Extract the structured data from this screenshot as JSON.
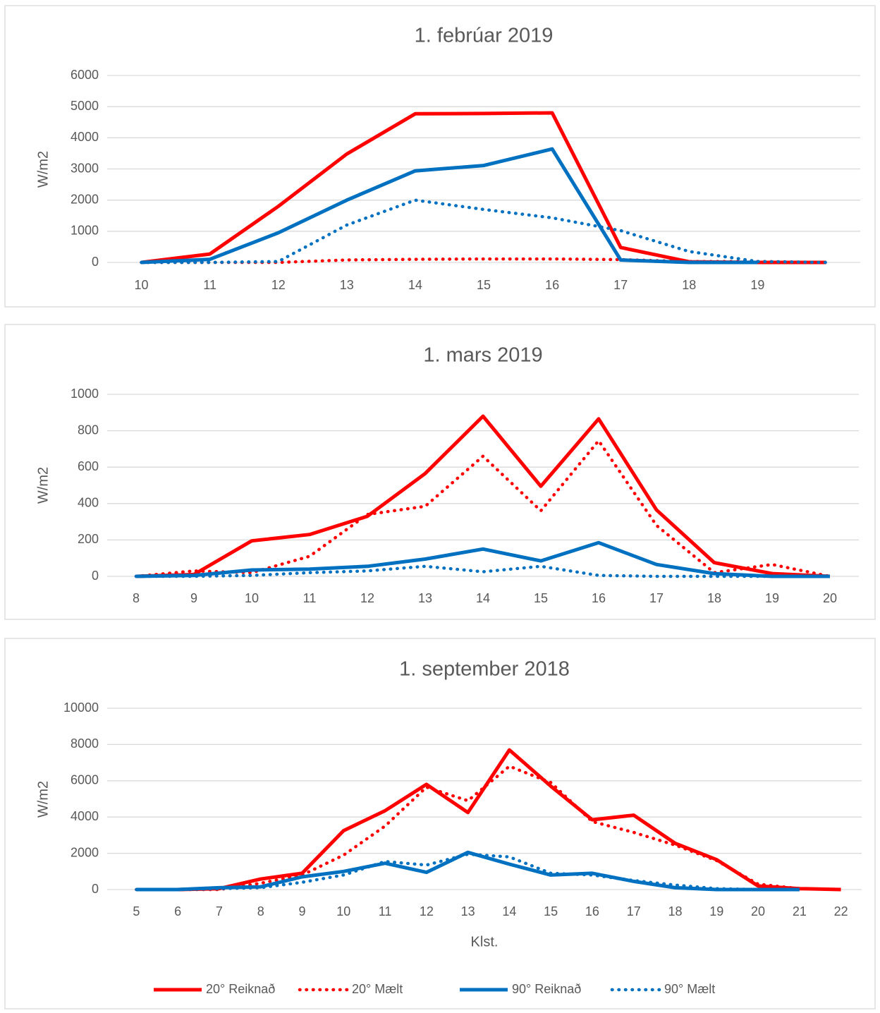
{
  "chart_data": [
    {
      "type": "line",
      "title": "1. febrúar 2019",
      "ylabel": "W/m2",
      "categories": [
        "10",
        "11",
        "12",
        "13",
        "14",
        "15",
        "16",
        "17",
        "18",
        "19",
        null
      ],
      "ylim": [
        0,
        6000
      ],
      "yticks": [
        0,
        1000,
        2000,
        3000,
        4000,
        5000,
        6000
      ],
      "grid": true,
      "series": [
        {
          "color": "#ff0000",
          "line_style": "solid",
          "values": [
            0,
            270,
            1800,
            3480,
            4770,
            4780,
            4800,
            480,
            20,
            0,
            0
          ]
        },
        {
          "color": "#ff0000",
          "line_style": "dotted",
          "values": [
            0,
            0,
            0,
            80,
            100,
            110,
            110,
            90,
            30,
            30,
            0
          ]
        },
        {
          "color": "#0070c0",
          "line_style": "solid",
          "values": [
            0,
            100,
            950,
            2000,
            2940,
            3110,
            3640,
            80,
            0,
            0,
            null
          ]
        },
        {
          "color": "#0070c0",
          "line_style": "dotted",
          "values": [
            0,
            0,
            30,
            1200,
            2000,
            1700,
            1430,
            1020,
            350,
            30,
            0
          ]
        }
      ]
    },
    {
      "type": "line",
      "title": "1. mars  2019",
      "ylabel": "W/m2",
      "categories": [
        "8",
        "9",
        "10",
        "11",
        "12",
        "13",
        "14",
        "15",
        "16",
        "17",
        "18",
        "19",
        "20"
      ],
      "ylim": [
        0,
        1000
      ],
      "yticks": [
        0,
        200,
        400,
        600,
        800,
        1000
      ],
      "grid": true,
      "series": [
        {
          "color": "#ff0000",
          "line_style": "solid",
          "values": [
            0,
            10,
            195,
            230,
            330,
            565,
            880,
            495,
            865,
            365,
            75,
            15,
            0
          ]
        },
        {
          "color": "#ff0000",
          "line_style": "dotted",
          "values": [
            0,
            30,
            20,
            110,
            340,
            385,
            660,
            360,
            745,
            280,
            20,
            65,
            0
          ]
        },
        {
          "color": "#0070c0",
          "line_style": "solid",
          "values": [
            0,
            5,
            35,
            40,
            55,
            95,
            150,
            85,
            185,
            65,
            15,
            0,
            0
          ]
        },
        {
          "color": "#0070c0",
          "line_style": "dotted",
          "values": [
            0,
            0,
            5,
            20,
            30,
            55,
            25,
            55,
            5,
            0,
            0,
            0,
            0
          ]
        }
      ]
    },
    {
      "type": "line",
      "title": "1. september 2018",
      "ylabel": "W/m2",
      "xlabel": "Klst.",
      "categories": [
        "5",
        "6",
        "7",
        "8",
        "9",
        "10",
        "11",
        "12",
        "13",
        "14",
        "15",
        "16",
        "17",
        "18",
        "19",
        "20",
        "21",
        "22"
      ],
      "ylim": [
        0,
        10000
      ],
      "yticks": [
        0,
        2000,
        4000,
        6000,
        8000,
        10000
      ],
      "grid": true,
      "legend": "bottom",
      "series": [
        {
          "name": "20° Reiknað",
          "color": "#ff0000",
          "line_style": "solid",
          "values": [
            0,
            0,
            50,
            580,
            900,
            3250,
            4350,
            5800,
            4250,
            7700,
            5700,
            3850,
            4100,
            2550,
            1650,
            200,
            50,
            0
          ]
        },
        {
          "name": "20° Mælt",
          "color": "#ff0000",
          "line_style": "dotted",
          "values": [
            0,
            0,
            0,
            350,
            800,
            1900,
            3500,
            5650,
            4900,
            6800,
            5900,
            3750,
            3150,
            2450,
            1600,
            300,
            50,
            0
          ]
        },
        {
          "name": "90° Reiknað",
          "color": "#0070c0",
          "line_style": "solid",
          "values": [
            0,
            0,
            100,
            150,
            700,
            1000,
            1450,
            950,
            2050,
            1400,
            800,
            900,
            450,
            100,
            0,
            0,
            0,
            null
          ]
        },
        {
          "name": "90° Mælt",
          "color": "#0070c0",
          "line_style": "dotted",
          "values": [
            0,
            0,
            50,
            100,
            400,
            800,
            1550,
            1350,
            1950,
            1800,
            900,
            800,
            500,
            250,
            50,
            0,
            0,
            null
          ]
        }
      ]
    }
  ]
}
